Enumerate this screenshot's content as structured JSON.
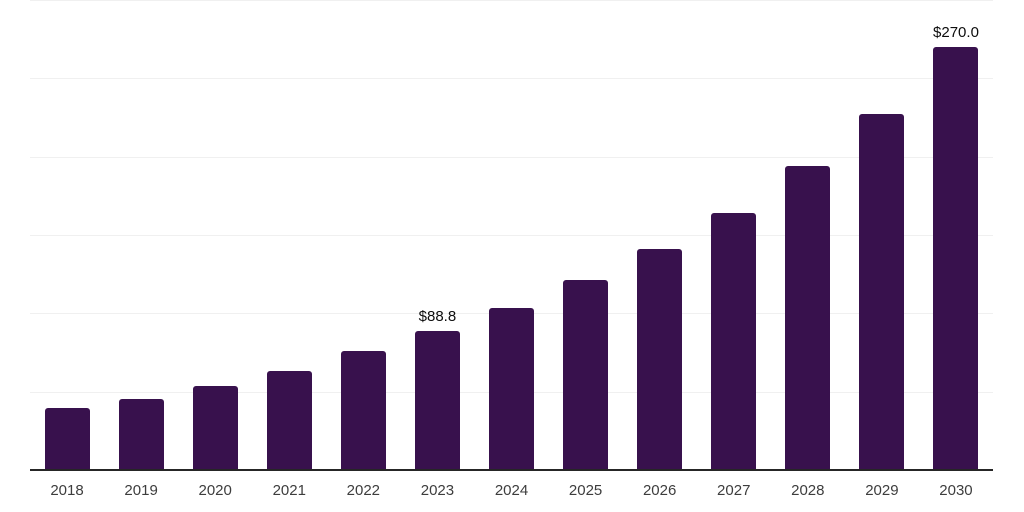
{
  "chart_data": {
    "type": "bar",
    "title": "",
    "xlabel": "",
    "ylabel": "",
    "categories": [
      "2018",
      "2019",
      "2020",
      "2021",
      "2022",
      "2023",
      "2024",
      "2025",
      "2026",
      "2027",
      "2028",
      "2029",
      "2030"
    ],
    "values": [
      39.3,
      45.5,
      53.9,
      63.5,
      75.7,
      88.8,
      103.6,
      121.0,
      140.8,
      164.2,
      193.8,
      227.0,
      270.0
    ],
    "data_labels": [
      "",
      "",
      "",
      "",
      "",
      "$88.8",
      "",
      "",
      "",
      "",
      "",
      "",
      "$270.0"
    ],
    "unit_prefix": "$",
    "ylim": [
      0,
      300
    ],
    "gridline_step": 50,
    "grid": true,
    "legend": false,
    "y_axis_labels_visible": false,
    "colors": {
      "bar": "#38114d",
      "grid": "#f0f0f0",
      "axis": "#262626",
      "tick_label": "#3d3d3d",
      "value_label": "#0d0d0d",
      "background": "#ffffff"
    }
  }
}
